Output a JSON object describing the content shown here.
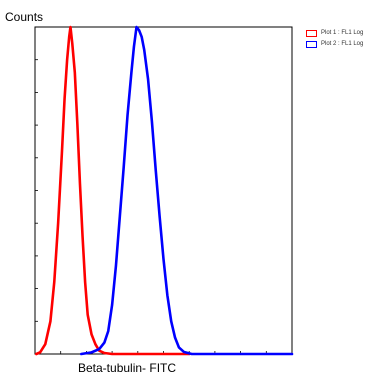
{
  "chart_data": {
    "type": "line",
    "title": "",
    "xlabel": "Beta-tubulin- FITC",
    "ylabel": "Counts",
    "x_scale": "log",
    "xlim": [
      0,
      100
    ],
    "ylim": [
      0,
      100
    ],
    "grid": false,
    "legend_position": "top-right",
    "series": [
      {
        "name": "Plot 1 : FL1 Log",
        "color": "#ff0000",
        "points": [
          [
            0.5,
            0
          ],
          [
            2.0,
            0.5
          ],
          [
            4.0,
            3
          ],
          [
            6.0,
            10
          ],
          [
            7.5,
            22
          ],
          [
            9.0,
            40
          ],
          [
            10.5,
            62
          ],
          [
            11.5,
            78
          ],
          [
            12.5,
            90
          ],
          [
            13.3,
            97
          ],
          [
            13.8,
            100
          ],
          [
            14.5,
            95
          ],
          [
            15.5,
            86
          ],
          [
            16.5,
            70
          ],
          [
            17.5,
            52
          ],
          [
            18.5,
            36
          ],
          [
            19.5,
            22
          ],
          [
            20.5,
            12
          ],
          [
            22.0,
            6
          ],
          [
            23.5,
            3
          ],
          [
            25.0,
            1
          ],
          [
            27.0,
            0.3
          ],
          [
            30.0,
            0
          ],
          [
            60.0,
            0
          ]
        ]
      },
      {
        "name": "Plot 2 : FL1 Log",
        "color": "#0000ff",
        "points": [
          [
            18.0,
            0
          ],
          [
            22.0,
            0.5
          ],
          [
            25.0,
            1.5
          ],
          [
            27.0,
            3.5
          ],
          [
            28.5,
            7
          ],
          [
            30.0,
            15
          ],
          [
            31.5,
            27
          ],
          [
            33.0,
            42
          ],
          [
            34.5,
            57
          ],
          [
            36.0,
            73
          ],
          [
            37.5,
            86
          ],
          [
            38.5,
            94
          ],
          [
            39.5,
            100
          ],
          [
            40.5,
            99
          ],
          [
            41.5,
            97
          ],
          [
            42.5,
            93
          ],
          [
            44.0,
            84
          ],
          [
            45.5,
            71
          ],
          [
            47.0,
            56
          ],
          [
            48.5,
            42
          ],
          [
            50.0,
            29
          ],
          [
            51.5,
            18
          ],
          [
            53.0,
            10
          ],
          [
            54.5,
            5
          ],
          [
            56.0,
            2
          ],
          [
            58.0,
            0.6
          ],
          [
            61.0,
            0
          ],
          [
            100.0,
            0
          ]
        ]
      }
    ],
    "x_ticks": [
      0,
      10,
      20,
      30,
      40,
      50,
      60,
      70,
      80,
      90,
      100
    ],
    "y_ticks": [
      0,
      10,
      20,
      30,
      40,
      50,
      60,
      70,
      80,
      90,
      100
    ]
  }
}
